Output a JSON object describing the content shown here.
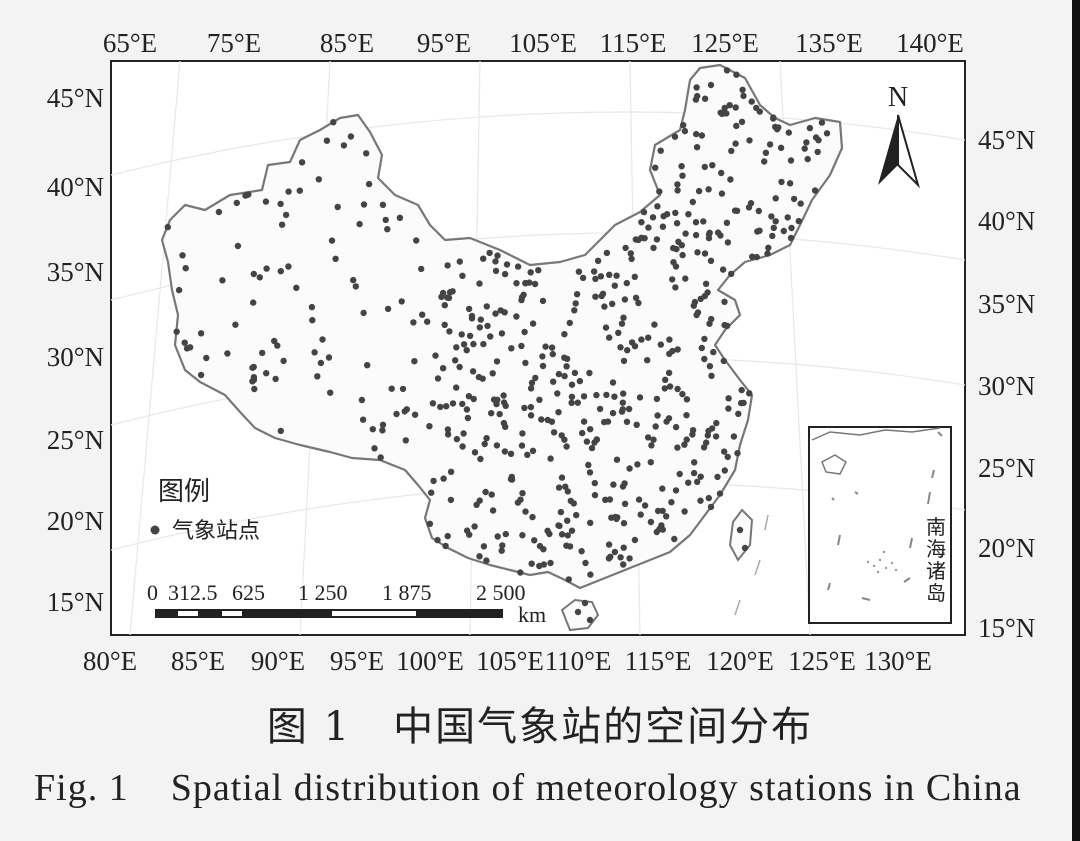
{
  "map": {
    "top_lon_labels": [
      "65°E",
      "75°E",
      "85°E",
      "95°E",
      "105°E",
      "115°E",
      "125°E",
      "135°E",
      "140°E"
    ],
    "bottom_lon_labels": [
      "80°E",
      "85°E",
      "90°E",
      "95°E",
      "100°E",
      "105°E",
      "110°E",
      "115°E",
      "120°E",
      "125°E",
      "130°E"
    ],
    "left_lat_labels": [
      "45°N",
      "40°N",
      "35°N",
      "30°N",
      "25°N",
      "20°N",
      "15°N"
    ],
    "right_lat_labels": [
      "45°N",
      "40°N",
      "35°N",
      "30°N",
      "25°N",
      "20°N",
      "15°N"
    ],
    "north_label": "N",
    "legend_title": "图例",
    "legend_item": "气象站点",
    "scale_ticks": [
      "0",
      "312.5",
      "625",
      "1 250",
      "1 875",
      "2 500"
    ],
    "scale_unit": "km",
    "inset_label": [
      "南",
      "海",
      "诸",
      "岛"
    ],
    "colors": {
      "station": "#444444",
      "boundary": "#777777",
      "frame": "#222222"
    }
  },
  "caption": {
    "cn": "图 1　中国气象站的空间分布",
    "en": "Fig. 1    Spatial distribution of meteorology stations in China"
  }
}
